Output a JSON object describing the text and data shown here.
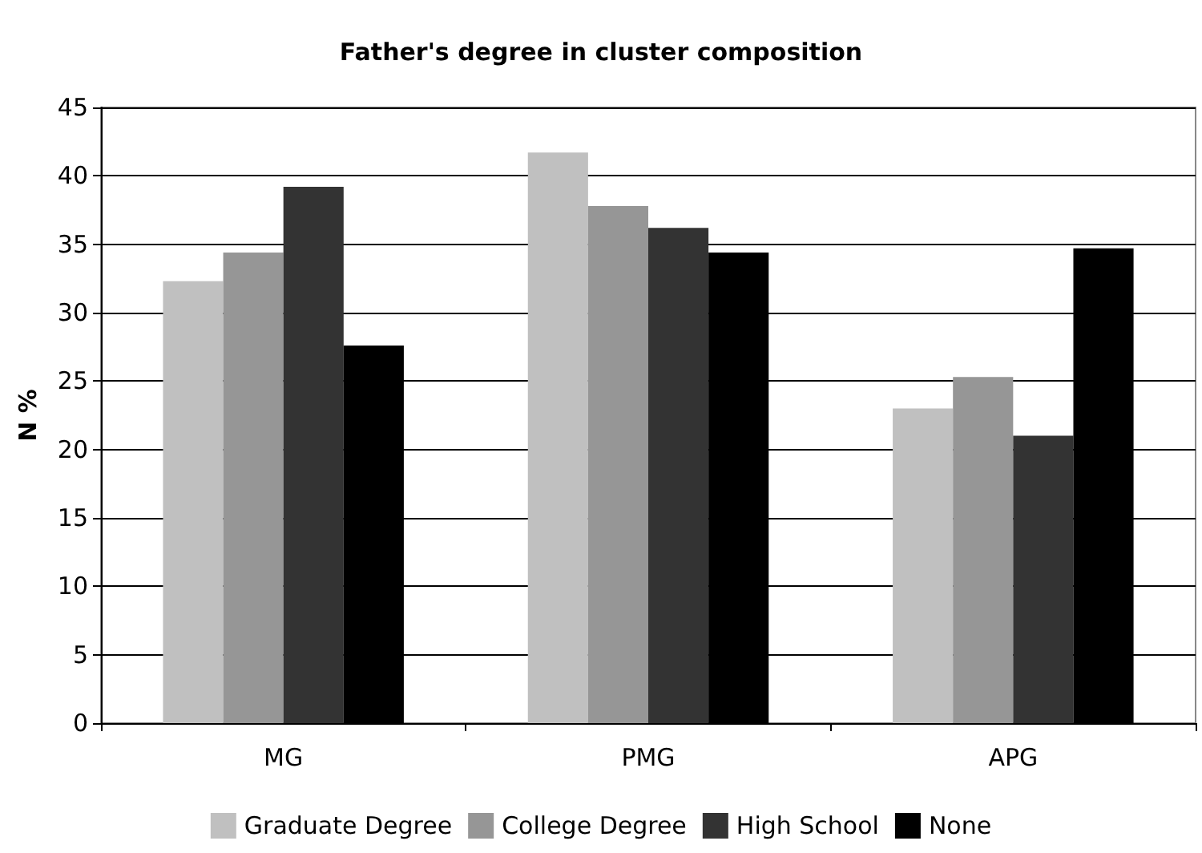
{
  "chart_data": {
    "type": "bar",
    "title": "Father's degree in cluster composition",
    "ylabel": "N %",
    "categories": [
      "MG",
      "PMG",
      "APG"
    ],
    "series": [
      {
        "name": "Graduate Degree",
        "color": "#c0c0c0",
        "values": [
          32.3,
          41.7,
          23.0
        ]
      },
      {
        "name": "College Degree",
        "color": "#969696",
        "values": [
          34.4,
          37.8,
          25.3
        ]
      },
      {
        "name": "High School",
        "color": "#333333",
        "values": [
          39.2,
          36.2,
          21.0
        ]
      },
      {
        "name": "None",
        "color": "#000000",
        "values": [
          27.6,
          34.4,
          34.7
        ]
      }
    ],
    "ylim": [
      0,
      45
    ],
    "yticks": [
      0,
      5,
      10,
      15,
      20,
      25,
      30,
      35,
      40,
      45
    ],
    "grid": "y",
    "legend": "bottom"
  }
}
